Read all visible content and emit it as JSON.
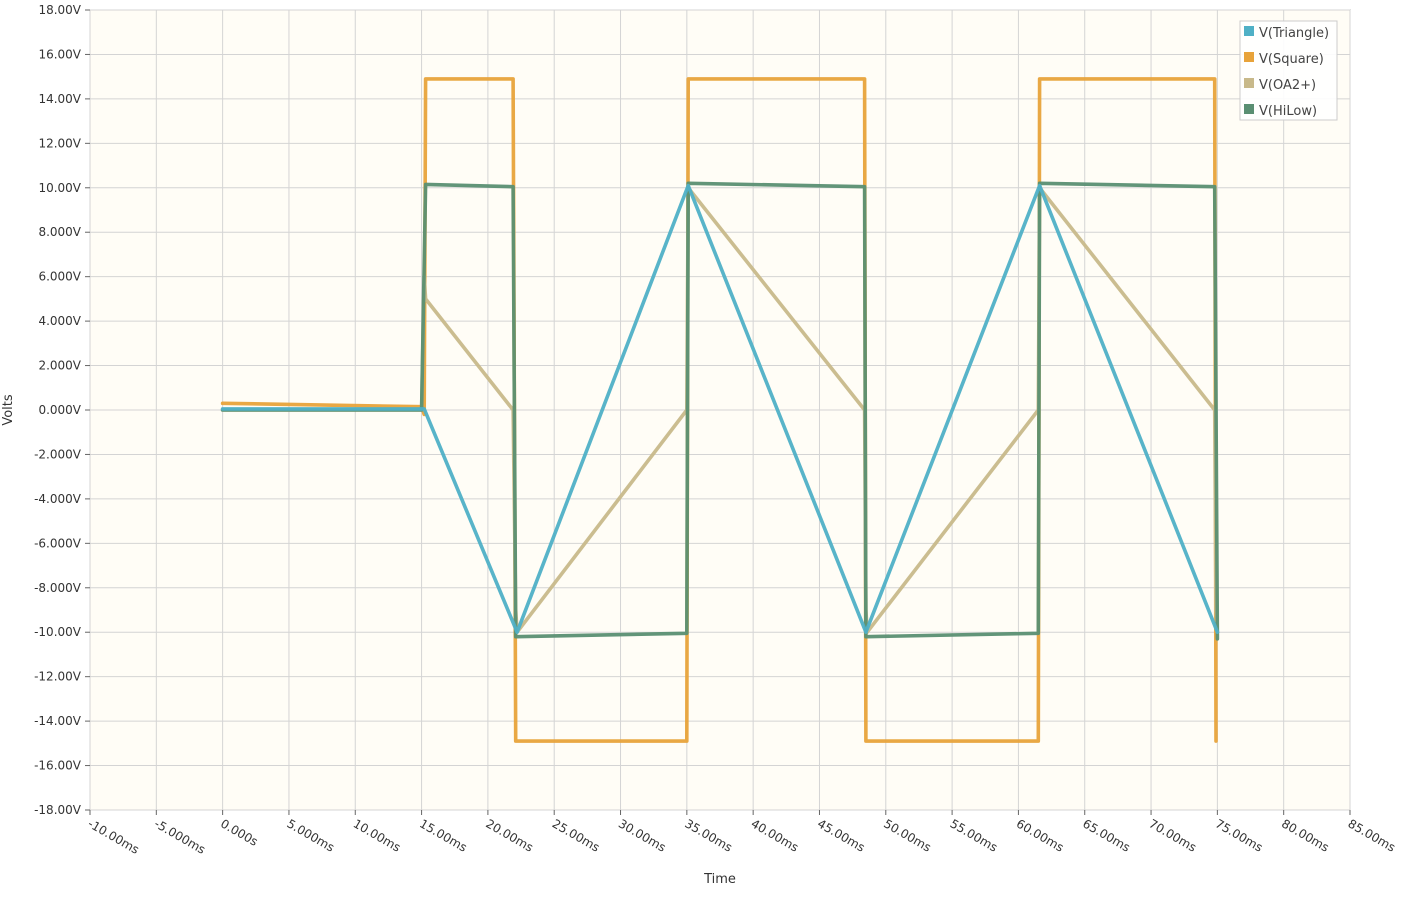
{
  "chart_data": {
    "type": "line",
    "xlabel": "Time",
    "ylabel": "Volts",
    "xlim": [
      -10,
      85
    ],
    "ylim": [
      -18,
      18
    ],
    "grid": true,
    "legend_position": "top-right",
    "x_ticks": [
      -10,
      -5,
      0,
      5,
      10,
      15,
      20,
      25,
      30,
      35,
      40,
      45,
      50,
      55,
      60,
      65,
      70,
      75,
      80,
      85
    ],
    "x_tick_labels": [
      "-10.00ms",
      "-5.000ms",
      "0.000s",
      "5.000ms",
      "10.00ms",
      "15.00ms",
      "20.00ms",
      "25.00ms",
      "30.00ms",
      "35.00ms",
      "40.00ms",
      "45.00ms",
      "50.00ms",
      "55.00ms",
      "60.00ms",
      "65.00ms",
      "70.00ms",
      "75.00ms",
      "80.00ms",
      "85.00ms"
    ],
    "y_ticks": [
      18,
      16,
      14,
      12,
      10,
      8,
      6,
      4,
      2,
      0,
      -2,
      -4,
      -6,
      -8,
      -10,
      -12,
      -14,
      -16,
      -18
    ],
    "y_tick_labels": [
      "18.00V",
      "16.00V",
      "14.00V",
      "12.00V",
      "10.00V",
      "8.000V",
      "6.000V",
      "4.000V",
      "2.000V",
      "0.000V",
      "-2.000V",
      "-4.000V",
      "-6.000V",
      "-8.000V",
      "-10.00V",
      "-12.00V",
      "-14.00V",
      "-16.00V",
      "-18.00V"
    ],
    "series": [
      {
        "name": "V(Square)",
        "color": "#e8a33a",
        "points": [
          [
            0,
            0.3
          ],
          [
            15,
            0.15
          ],
          [
            15.2,
            -0.2
          ],
          [
            15.3,
            14.9
          ],
          [
            21.9,
            14.9
          ],
          [
            22.1,
            -14.9
          ],
          [
            35.0,
            -14.9
          ],
          [
            35.1,
            14.9
          ],
          [
            48.4,
            14.9
          ],
          [
            48.5,
            -14.9
          ],
          [
            61.5,
            -14.9
          ],
          [
            61.6,
            14.9
          ],
          [
            74.8,
            14.9
          ],
          [
            74.9,
            -14.9
          ]
        ]
      },
      {
        "name": "V(OA2+)",
        "color": "#c8b98a",
        "points": [
          [
            0,
            0
          ],
          [
            15,
            0
          ],
          [
            15.2,
            6
          ],
          [
            15.3,
            5
          ],
          [
            21.9,
            0
          ],
          [
            22.1,
            -9
          ],
          [
            22.2,
            -10
          ],
          [
            35.0,
            0
          ],
          [
            35.1,
            10
          ],
          [
            48.4,
            0
          ],
          [
            48.5,
            -9
          ],
          [
            48.6,
            -10
          ],
          [
            61.5,
            0
          ],
          [
            61.6,
            10
          ],
          [
            74.8,
            0
          ],
          [
            74.9,
            -9
          ],
          [
            75.0,
            -10
          ]
        ]
      },
      {
        "name": "V(HiLow)",
        "color": "#5a8f72",
        "points": [
          [
            0,
            0
          ],
          [
            15,
            0
          ],
          [
            15.3,
            10.15
          ],
          [
            21.9,
            10.05
          ],
          [
            22.1,
            -10.2
          ],
          [
            35.0,
            -10.05
          ],
          [
            35.1,
            10.2
          ],
          [
            48.4,
            10.05
          ],
          [
            48.5,
            -10.2
          ],
          [
            61.5,
            -10.05
          ],
          [
            61.6,
            10.2
          ],
          [
            74.8,
            10.05
          ],
          [
            75.0,
            -10.3
          ]
        ]
      },
      {
        "name": "V(Triangle)",
        "color": "#4fb0c6",
        "points": [
          [
            0,
            0.05
          ],
          [
            15.2,
            0.05
          ],
          [
            22.2,
            -10
          ],
          [
            35.1,
            10.1
          ],
          [
            48.5,
            -10
          ],
          [
            61.6,
            10.1
          ],
          [
            75.0,
            -10
          ]
        ]
      }
    ],
    "legend": [
      {
        "name": "V(Triangle)",
        "color": "#4fb0c6"
      },
      {
        "name": "V(Square)",
        "color": "#e8a33a"
      },
      {
        "name": "V(OA2+)",
        "color": "#c8b98a"
      },
      {
        "name": "V(HiLow)",
        "color": "#5a8f72"
      }
    ]
  }
}
